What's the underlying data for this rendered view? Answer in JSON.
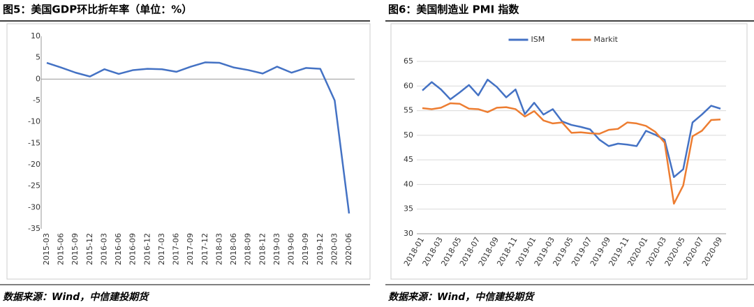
{
  "chart_data": [
    {
      "type": "line",
      "title": "图5：美国GDP环比折年率（单位：%）",
      "source": "数据来源：Wind，中信建投期货",
      "categories": [
        "2015-03",
        "2015-06",
        "2015-09",
        "2015-12",
        "2016-03",
        "2016-06",
        "2016-09",
        "2016-12",
        "2017-03",
        "2017-06",
        "2017-09",
        "2017-12",
        "2018-03",
        "2018-06",
        "2018-09",
        "2018-12",
        "2019-03",
        "2019-06",
        "2019-09",
        "2019-12",
        "2020-03",
        "2020-06"
      ],
      "series": [
        {
          "name": "GDP",
          "color": "#4472c4",
          "values": [
            3.8,
            2.7,
            1.5,
            0.6,
            2.3,
            1.2,
            2.1,
            2.4,
            2.3,
            1.7,
            2.9,
            3.9,
            3.8,
            2.7,
            2.1,
            1.3,
            2.9,
            1.5,
            2.6,
            2.4,
            -5.0,
            -31.4
          ]
        }
      ],
      "ylim": [
        -35,
        10
      ],
      "yticks": [
        -35,
        -30,
        -25,
        -20,
        -15,
        -10,
        -5,
        0,
        5,
        10
      ],
      "grid": false,
      "legend": false
    },
    {
      "type": "line",
      "title": "图6：美国制造业 PMI 指数",
      "source": "数据来源：Wind，中信建投期货",
      "categories": [
        "2018-01",
        null,
        "2018-03",
        null,
        "2018-05",
        null,
        "2018-07",
        null,
        "2018-09",
        null,
        "2018-11",
        null,
        "2019-01",
        null,
        "2019-03",
        null,
        "2019-05",
        null,
        "2019-07",
        null,
        "2019-09",
        null,
        "2019-11",
        null,
        "2020-01",
        null,
        "2020-03",
        null,
        "2020-05",
        null,
        "2020-07",
        null,
        "2020-09"
      ],
      "series": [
        {
          "name": "ISM",
          "color": "#4472c4",
          "values": [
            59.1,
            60.8,
            59.3,
            57.3,
            58.7,
            60.2,
            58.1,
            61.3,
            59.8,
            57.7,
            59.3,
            54.3,
            56.6,
            54.2,
            55.3,
            52.8,
            52.1,
            51.7,
            51.2,
            49.1,
            47.8,
            48.3,
            48.1,
            47.8,
            50.9,
            50.1,
            49.1,
            41.5,
            43.1,
            52.6,
            54.2,
            56.0,
            55.4
          ]
        },
        {
          "name": "Markit",
          "color": "#ed7d31",
          "values": [
            55.5,
            55.3,
            55.6,
            56.5,
            56.4,
            55.4,
            55.3,
            54.7,
            55.6,
            55.7,
            55.3,
            53.8,
            54.9,
            53.0,
            52.4,
            52.6,
            50.5,
            50.6,
            50.4,
            50.3,
            51.1,
            51.3,
            52.6,
            52.4,
            51.9,
            50.7,
            48.5,
            36.1,
            39.8,
            49.8,
            50.9,
            53.1,
            53.2
          ]
        }
      ],
      "ylim": [
        30,
        65
      ],
      "yticks": [
        30,
        35,
        40,
        45,
        50,
        55,
        60,
        65
      ],
      "grid": true,
      "legend": "top"
    }
  ]
}
